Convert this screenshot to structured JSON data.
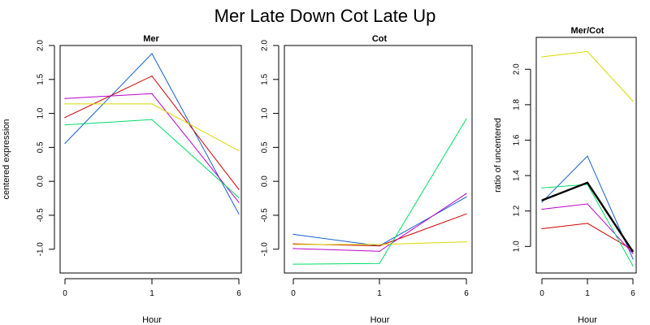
{
  "figure_title": "Mer Late Down Cot Late Up",
  "colors": {
    "blue": "#1560d0",
    "red": "#cc0000",
    "magenta": "#bb00cc",
    "yellow": "#d8d800",
    "green": "#00dd66",
    "black": "#000000"
  },
  "chart_data": [
    {
      "type": "line",
      "title": "Mer",
      "xlabel": "Hour",
      "ylabel": "centered expression",
      "categories": [
        "0",
        "1",
        "6"
      ],
      "ylim": [
        -1.35,
        2.0
      ],
      "yticks": [
        -1.0,
        -0.5,
        0.0,
        0.5,
        1.0,
        1.5,
        2.0
      ],
      "ytick_labels": [
        "-1.0",
        "-0.5",
        "0.0",
        "0.5",
        "1.0",
        "1.5",
        "2.0"
      ],
      "grid": false,
      "series": [
        {
          "color": "#1560d0",
          "values": [
            0.56,
            1.88,
            -0.48
          ]
        },
        {
          "color": "#cc0000",
          "values": [
            0.94,
            1.55,
            -0.12
          ]
        },
        {
          "color": "#bb00cc",
          "values": [
            1.22,
            1.29,
            -0.31
          ]
        },
        {
          "color": "#d8d800",
          "values": [
            1.14,
            1.14,
            0.45
          ]
        },
        {
          "color": "#00dd66",
          "values": [
            0.83,
            0.91,
            -0.24
          ]
        }
      ]
    },
    {
      "type": "line",
      "title": "Cot",
      "xlabel": "Hour",
      "ylabel": "",
      "categories": [
        "0",
        "1",
        "6"
      ],
      "ylim": [
        -1.35,
        2.0
      ],
      "yticks": [
        -1.0,
        -0.5,
        0.0,
        0.5,
        1.0,
        1.5,
        2.0
      ],
      "ytick_labels": [
        "-1.0",
        "-0.5",
        "0.0",
        "0.5",
        "1.0",
        "1.5",
        "2.0"
      ],
      "grid": false,
      "series": [
        {
          "color": "#1560d0",
          "values": [
            -0.78,
            -0.95,
            -0.23
          ]
        },
        {
          "color": "#cc0000",
          "values": [
            -0.92,
            -0.95,
            -0.48
          ]
        },
        {
          "color": "#bb00cc",
          "values": [
            -0.99,
            -1.03,
            -0.18
          ]
        },
        {
          "color": "#d8d800",
          "values": [
            -0.93,
            -0.93,
            -0.89
          ]
        },
        {
          "color": "#00dd66",
          "values": [
            -1.22,
            -1.21,
            0.92
          ]
        }
      ]
    },
    {
      "type": "line",
      "title": "Mer/Cot",
      "xlabel": "Hour",
      "ylabel": "ratio of uncentered",
      "categories": [
        "0",
        "1",
        "6"
      ],
      "ylim": [
        0.85,
        2.18
      ],
      "yticks": [
        1.0,
        1.2,
        1.4,
        1.6,
        1.8,
        2.0
      ],
      "ytick_labels": [
        "1.0",
        "1.2",
        "1.4",
        "1.6",
        "1.8",
        "2.0"
      ],
      "grid": false,
      "series": [
        {
          "color": "#1560d0",
          "values": [
            1.25,
            1.51,
            0.93
          ]
        },
        {
          "color": "#cc0000",
          "values": [
            1.1,
            1.13,
            0.98
          ]
        },
        {
          "color": "#bb00cc",
          "values": [
            1.21,
            1.24,
            0.96
          ]
        },
        {
          "color": "#d8d800",
          "values": [
            2.07,
            2.1,
            1.82
          ]
        },
        {
          "color": "#00dd66",
          "values": [
            1.33,
            1.35,
            0.89
          ]
        },
        {
          "color": "#000000",
          "values": [
            1.26,
            1.36,
            0.97
          ],
          "thick": true
        }
      ]
    }
  ]
}
